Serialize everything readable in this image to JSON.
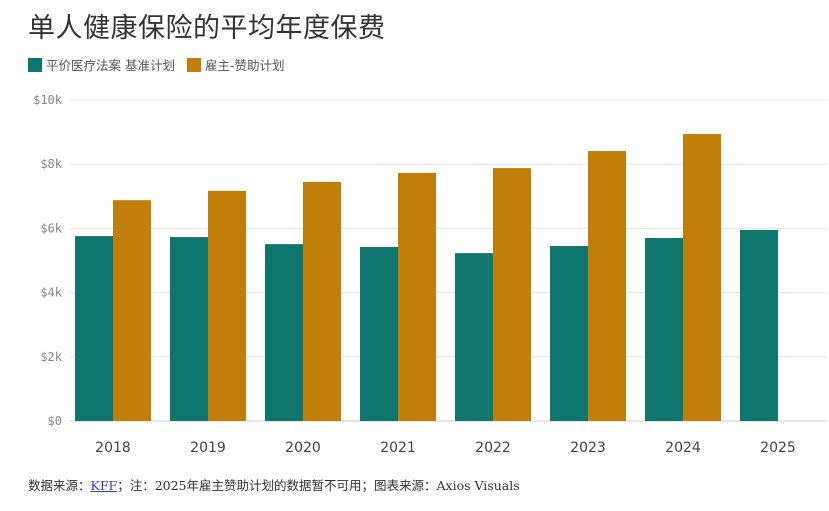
{
  "chart_data": {
    "type": "bar",
    "title": "单人健康保险的平均年度保费",
    "categories": [
      "2018",
      "2019",
      "2020",
      "2021",
      "2022",
      "2023",
      "2024",
      "2025"
    ],
    "series": [
      {
        "name": "平价医疗法案 基准计划",
        "color": "#0f766e",
        "values": [
          5760,
          5730,
          5510,
          5420,
          5230,
          5450,
          5700,
          5950
        ]
      },
      {
        "name": "雇主-赞助计划",
        "color": "#c17f0a",
        "values": [
          6880,
          7170,
          7450,
          7730,
          7880,
          8410,
          8940,
          null
        ]
      }
    ],
    "yticks": [
      0,
      2000,
      4000,
      6000,
      8000,
      10000
    ],
    "ytick_labels": [
      "$0",
      "$2k",
      "$4k",
      "$6k",
      "$8k",
      "$10k"
    ],
    "ylim": [
      0,
      10000
    ],
    "grid": true,
    "legend": "top-left"
  },
  "footer": {
    "source_prefix": "数据来源：",
    "source_link": "KFF",
    "rest": "；注：2025年雇主赞助计划的数据暂不可用；图表来源：Axios Visuals"
  }
}
